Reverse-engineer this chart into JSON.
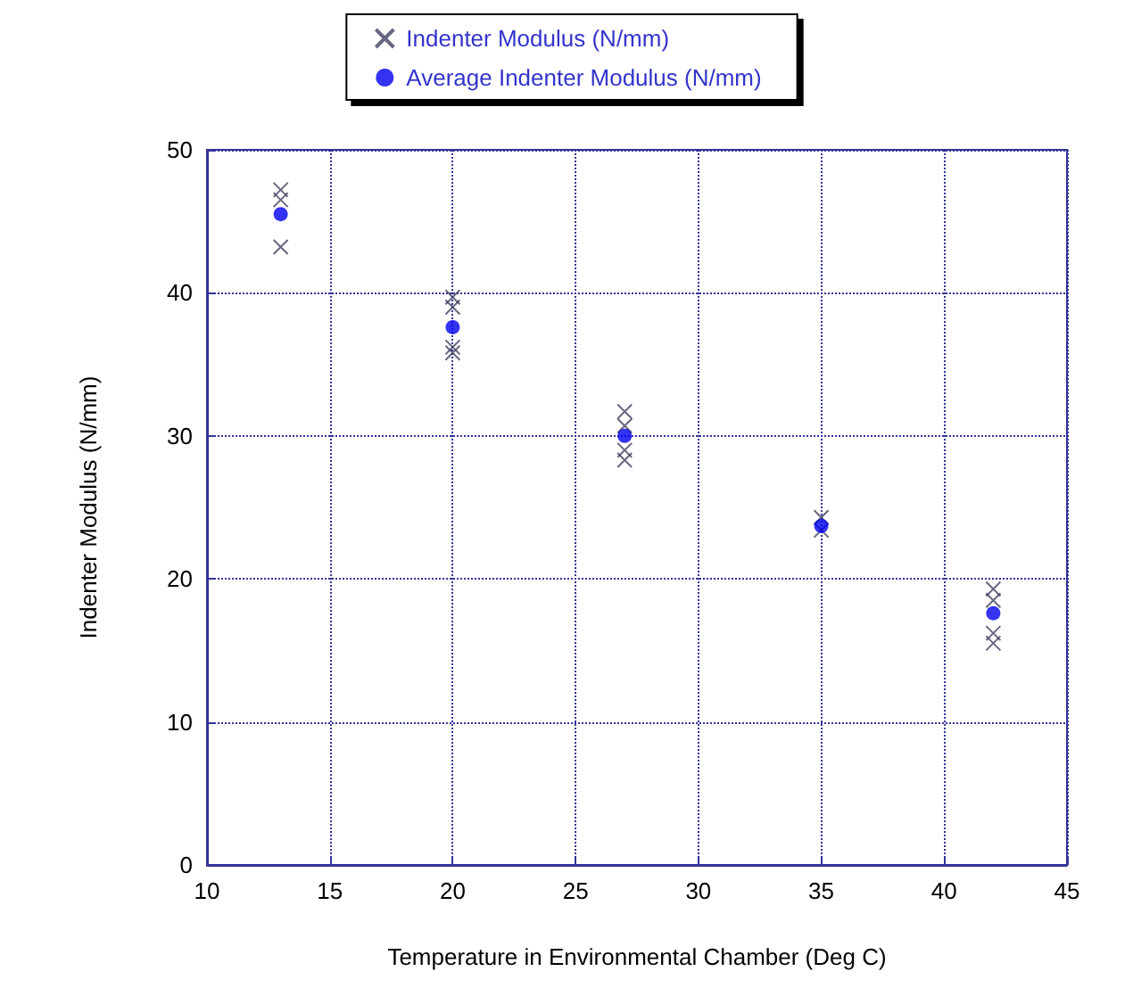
{
  "chart_data": {
    "type": "scatter",
    "xlabel": "Temperature in Environmental Chamber (Deg C)",
    "ylabel": "Indenter Modulus (N/mm)",
    "xlim": [
      10,
      45
    ],
    "xticks": [
      10,
      15,
      20,
      25,
      30,
      35,
      40,
      45
    ],
    "ylim": [
      0,
      50
    ],
    "yticks": [
      0,
      10,
      20,
      30,
      40,
      50
    ],
    "grid": true,
    "legend": "top",
    "series": [
      {
        "name": "Indenter Modulus (N/mm)",
        "color": "#404060",
        "marker": "cross",
        "x": [
          13,
          13,
          13,
          20,
          20,
          20,
          20,
          27,
          27,
          27,
          27,
          35,
          35,
          42,
          42,
          42,
          42
        ],
        "values": [
          47.2,
          46.5,
          43.2,
          39.7,
          39.0,
          36.2,
          35.8,
          31.7,
          30.7,
          29.0,
          28.3,
          24.3,
          23.4,
          19.3,
          18.5,
          16.2,
          15.5
        ]
      },
      {
        "name": "Average Indenter Modulus (N/mm)",
        "color": "#0000ee",
        "marker": "circle",
        "x": [
          13,
          20,
          27,
          35,
          42
        ],
        "values": [
          45.5,
          37.6,
          30.0,
          23.7,
          17.6
        ]
      }
    ]
  }
}
